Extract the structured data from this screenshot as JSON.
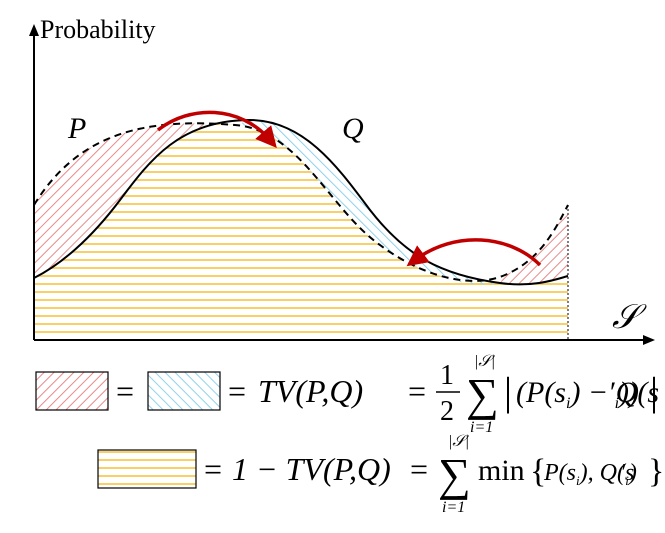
{
  "axes": {
    "y_label": "Probability",
    "x_label": "𝒮"
  },
  "curves": {
    "p_label": "P",
    "q_label": "Q"
  },
  "colors": {
    "red_hatch": "#e88a8a",
    "blue_hatch": "#8fd3ee",
    "yellow_hatch": "#f5c542",
    "arrow": "#c00000",
    "curve": "#000000"
  },
  "legend": {
    "row1": {
      "eq1": "=",
      "eq2": "=",
      "tv_expr": "TV(P,Q)",
      "eq3": "=",
      "frac_num": "1",
      "frac_den": "2",
      "sum_sym": "∑",
      "sum_upper": "|𝒮|",
      "sum_lower": "i=1",
      "abs_open": "|",
      "body": "(P(s",
      "sub_i1": "i",
      "minus": ") − Q(s",
      "prime": "′",
      "sub_i2": "i",
      "close": "))",
      "abs_close": "|"
    },
    "row2": {
      "eq1": "=",
      "one_minus": "1 − TV(P,Q)",
      "eq2": "=",
      "sum_sym": "∑",
      "sum_upper": "|𝒮|",
      "sum_lower": "i=1",
      "min_word": "min",
      "brace_open": "{",
      "body1": "P(s",
      "sub_i1": "i",
      "mid": "), Q(s",
      "prime": "′",
      "sub_i2": "i",
      "close": ")",
      "brace_close": "}"
    }
  }
}
